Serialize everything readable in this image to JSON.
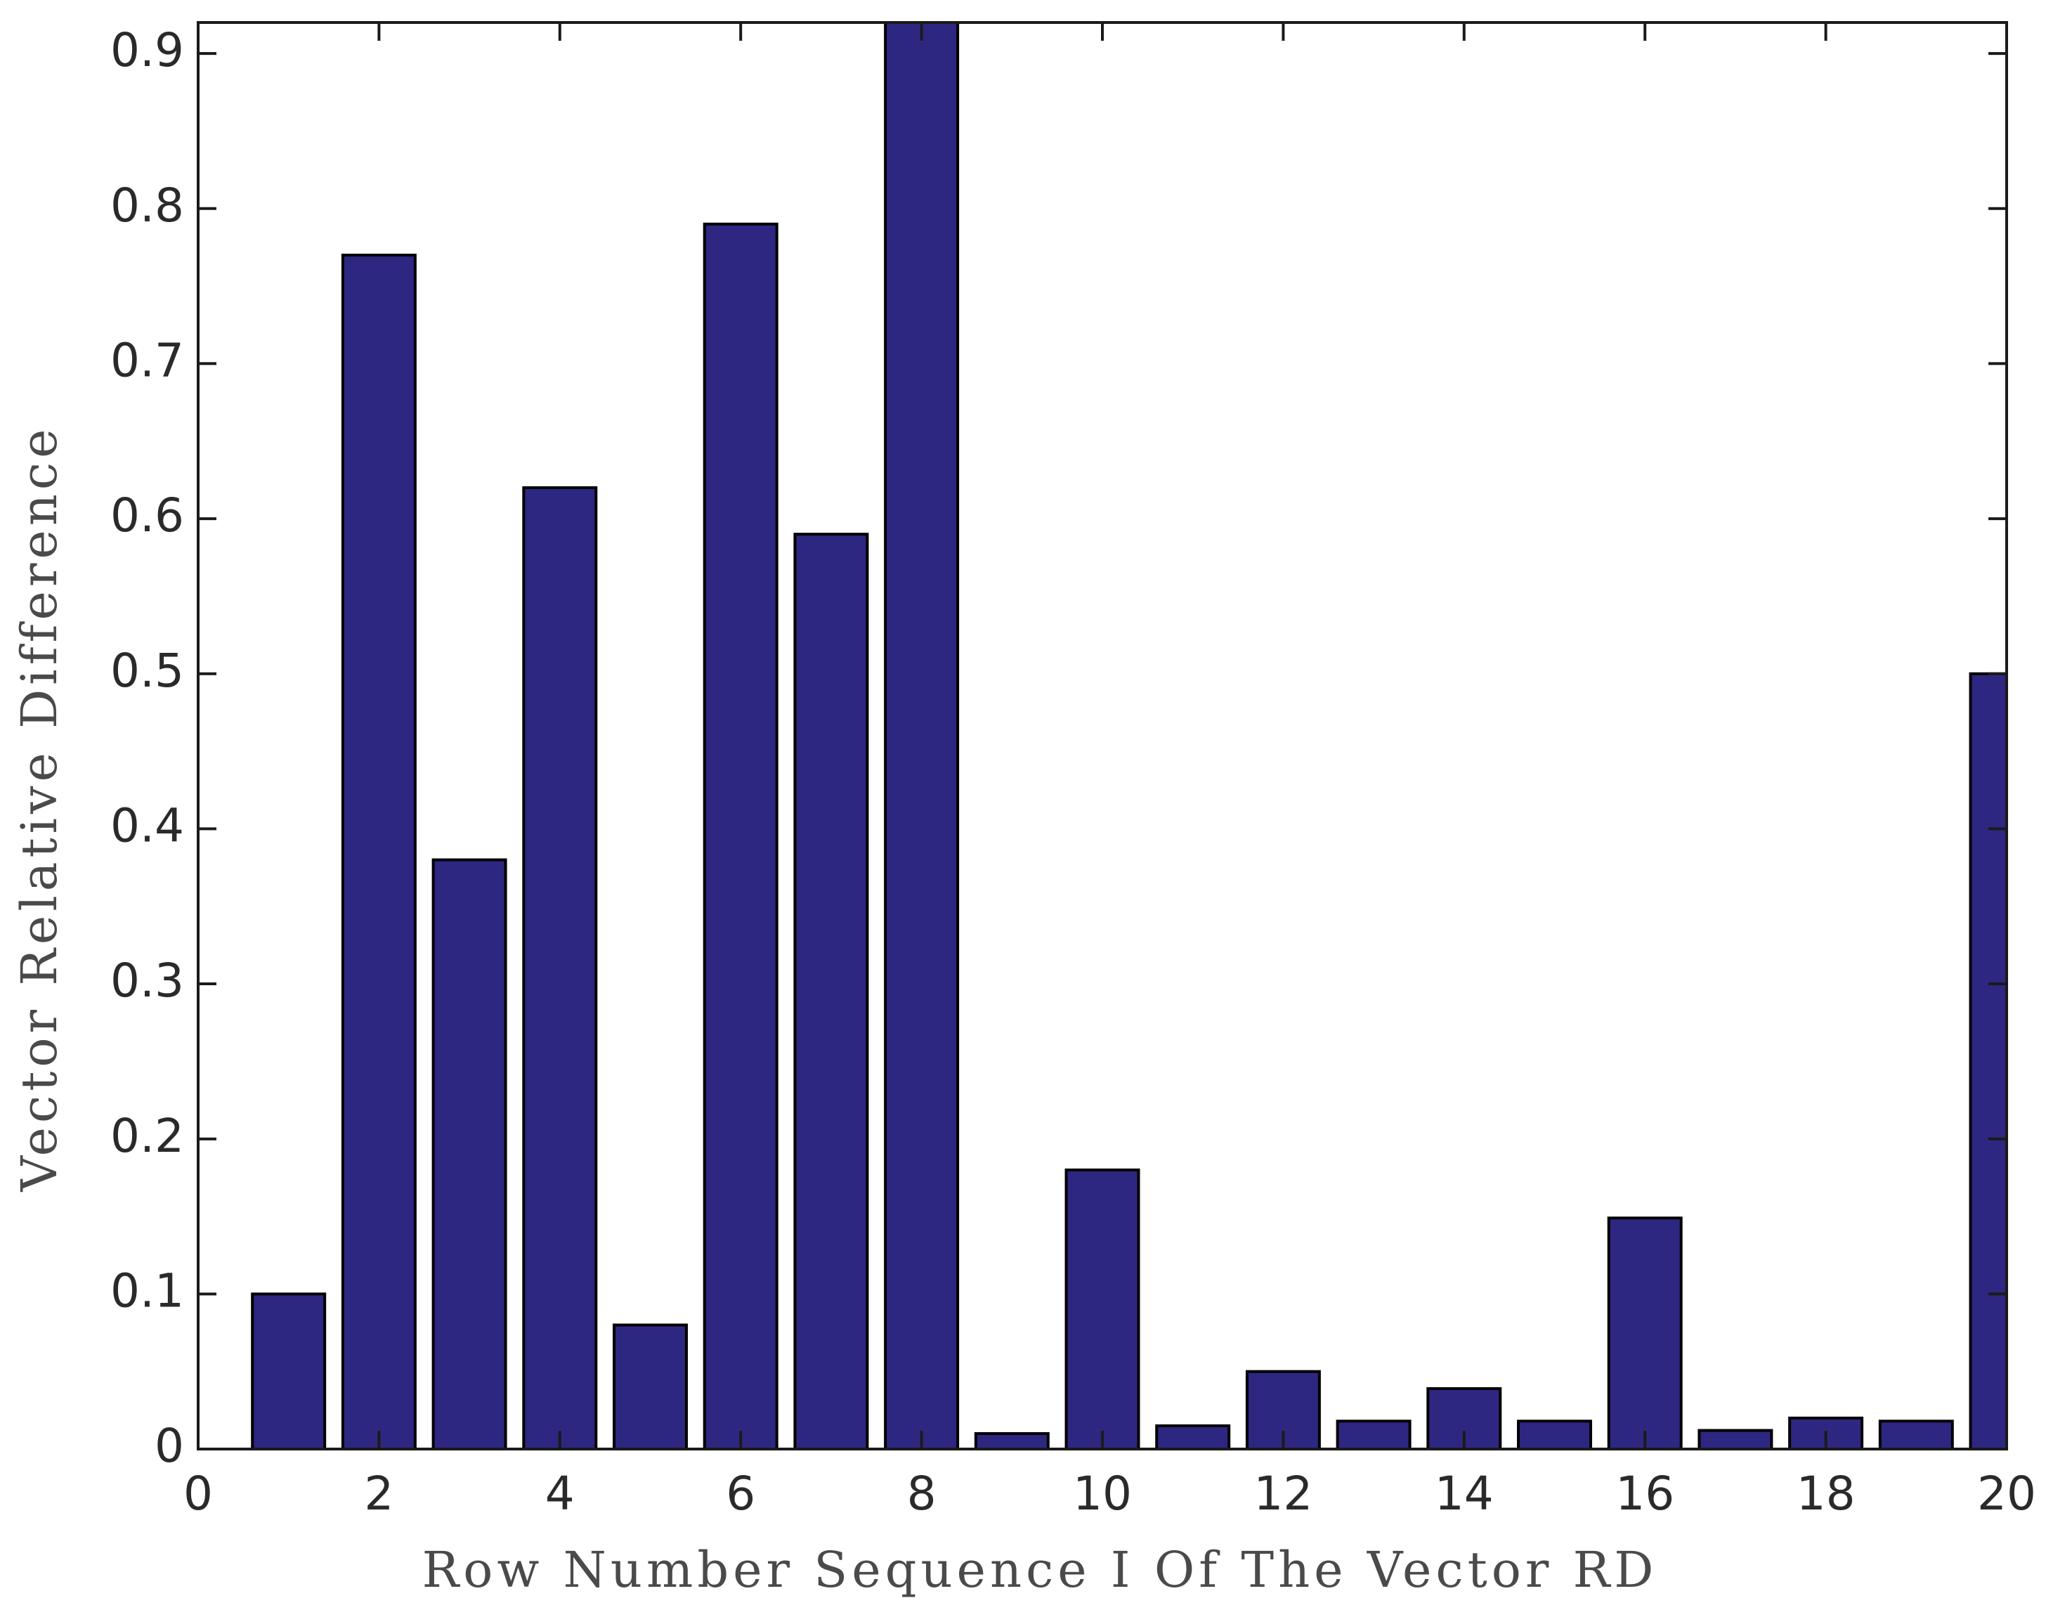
{
  "chart_data": {
    "type": "bar",
    "title": "",
    "xlabel": "Row Number Sequence I Of The Vector RD",
    "ylabel": "Vector Relative Difference",
    "xlim": [
      0,
      20
    ],
    "ylim": [
      0,
      0.92
    ],
    "x_ticks": [
      0,
      2,
      4,
      6,
      8,
      10,
      12,
      14,
      16,
      18,
      20
    ],
    "x_tick_labels": [
      "0",
      "2",
      "4",
      "6",
      "8",
      "10",
      "12",
      "14",
      "16",
      "18",
      "20"
    ],
    "y_ticks": [
      0,
      0.1,
      0.2,
      0.3,
      0.4,
      0.5,
      0.6,
      0.7,
      0.8,
      0.9
    ],
    "y_tick_labels": [
      "0",
      "0.1",
      "0.2",
      "0.3",
      "0.4",
      "0.5",
      "0.6",
      "0.7",
      "0.8",
      "0.9"
    ],
    "x": [
      1,
      2,
      3,
      4,
      5,
      6,
      7,
      8,
      9,
      10,
      11,
      12,
      13,
      14,
      15,
      16,
      17,
      18,
      19,
      20
    ],
    "values": [
      0.1,
      0.77,
      0.38,
      0.62,
      0.08,
      0.79,
      0.59,
      0.92,
      0.01,
      0.18,
      0.015,
      0.05,
      0.018,
      0.039,
      0.018,
      0.149,
      0.012,
      0.02,
      0.018,
      0.5
    ],
    "bar_color": "#2e2781",
    "grid": false
  }
}
